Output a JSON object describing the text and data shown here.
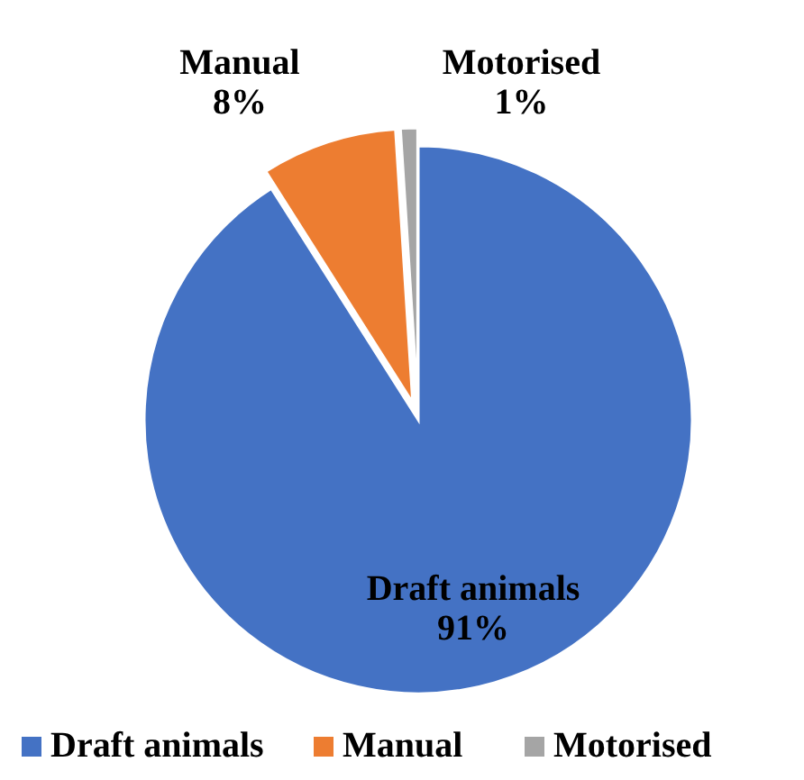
{
  "chart_data": {
    "type": "pie",
    "categories": [
      "Draft animals",
      "Manual",
      "Motorised"
    ],
    "values": [
      91,
      8,
      1
    ],
    "colors": [
      "#4472c4",
      "#ed7d31",
      "#a5a5a5"
    ],
    "value_labels": [
      "91%",
      "8%",
      "1%"
    ],
    "legend": "bottom"
  }
}
